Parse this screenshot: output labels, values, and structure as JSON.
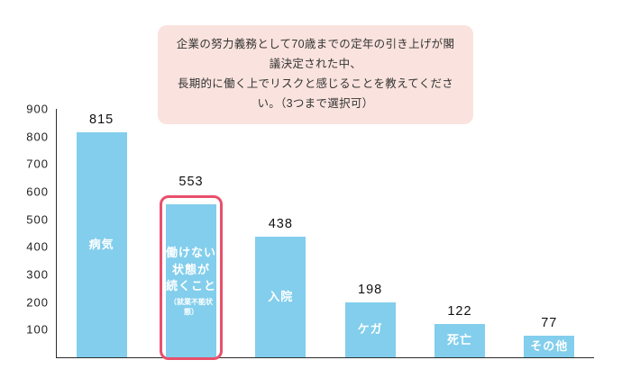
{
  "title": "企業の努力義務として70歳までの定年の引き上げが閣議決定された中、\n長期的に働く上でリスクと感じることを教えてください。（3つまで選択可）",
  "colors": {
    "bar": "#82ceec",
    "title_background": "#fae3de",
    "highlight_border": "#e8506b",
    "axis": "#2b2b2b"
  },
  "chart_data": {
    "type": "bar",
    "title": "企業の努力義務として70歳までの定年の引き上げが閣議決定された中、長期的に働く上でリスクと感じることを教えてください。（3つまで選択可）",
    "xlabel": "",
    "ylabel": "",
    "ylim": [
      0,
      900
    ],
    "yticks": [
      100,
      200,
      300,
      400,
      500,
      600,
      700,
      800,
      900
    ],
    "grid": false,
    "legend": false,
    "categories": [
      "病気",
      "働けない状態が続くこと（就業不能状態）",
      "入院",
      "ケガ",
      "死亡",
      "その他"
    ],
    "values": [
      815,
      553,
      438,
      198,
      122,
      77
    ],
    "highlight_index": 1,
    "bars": [
      {
        "label": "病気",
        "sub": "",
        "value": 815,
        "highlight": false
      },
      {
        "label": "働けない\n状態が\n続くこと",
        "sub": "（就業不能状態）",
        "value": 553,
        "highlight": true
      },
      {
        "label": "入院",
        "sub": "",
        "value": 438,
        "highlight": false
      },
      {
        "label": "ケガ",
        "sub": "",
        "value": 198,
        "highlight": false
      },
      {
        "label": "死亡",
        "sub": "",
        "value": 122,
        "highlight": false
      },
      {
        "label": "その他",
        "sub": "",
        "value": 77,
        "highlight": false
      }
    ]
  }
}
